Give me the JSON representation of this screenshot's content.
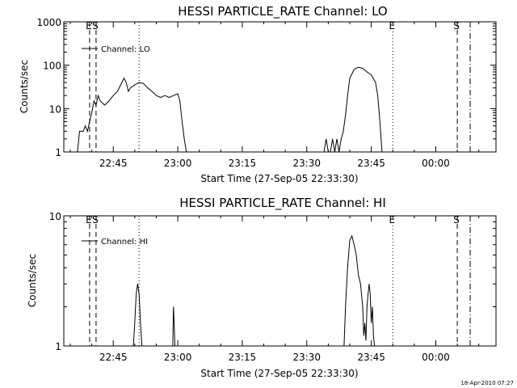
{
  "footer_timestamp": "18-Apr-2010 07:27",
  "chart_data": [
    {
      "type": "line",
      "title": "HESSI PARTICLE_RATE Channel: LO",
      "xlabel": "Start Time (27-Sep-05 22:33:30)",
      "ylabel": "Counts/sec",
      "y_scale": "log",
      "xlim": [
        "22:33:30",
        "00:14:00"
      ],
      "ylim": [
        1,
        1000
      ],
      "x_tick_labels": [
        "22:45",
        "23:00",
        "23:15",
        "23:30",
        "23:45",
        "00:00"
      ],
      "y_tick_labels": [
        "1",
        "10",
        "100",
        "1000"
      ],
      "legend": {
        "label": "Channel: LO",
        "placement": "top-left"
      },
      "markers": [
        {
          "label": "E",
          "time": "22:39:30",
          "style": "dashed"
        },
        {
          "label": "S",
          "time": "22:41:00",
          "style": "dashed"
        },
        {
          "label": "",
          "time": "22:51:00",
          "style": "dotted"
        },
        {
          "label": "E",
          "time": "23:50:00",
          "style": "dotted"
        },
        {
          "label": "S",
          "time": "00:05:00",
          "style": "dashed"
        },
        {
          "label": "",
          "time": "00:08:00",
          "style": "dashdot"
        }
      ],
      "series": [
        {
          "segments": [
            [
              [
                "22:36:40",
                1
              ],
              [
                "22:37:10",
                3
              ],
              [
                "22:38:00",
                3
              ],
              [
                "22:38:30",
                4
              ],
              [
                "22:39:00",
                3
              ],
              [
                "22:39:30",
                5
              ],
              [
                "22:40:00",
                8
              ],
              [
                "22:40:30",
                15
              ],
              [
                "22:41:00",
                12
              ],
              [
                "22:41:30",
                20
              ],
              [
                "22:42:00",
                15
              ],
              [
                "22:43:00",
                12
              ],
              [
                "22:44:00",
                15
              ],
              [
                "22:45:00",
                20
              ],
              [
                "22:46:00",
                25
              ],
              [
                "22:47:00",
                40
              ],
              [
                "22:47:30",
                50
              ],
              [
                "22:48:00",
                40
              ],
              [
                "22:48:30",
                25
              ],
              [
                "22:49:00",
                30
              ],
              [
                "22:50:00",
                35
              ],
              [
                "22:51:00",
                40
              ],
              [
                "22:52:00",
                38
              ],
              [
                "22:53:00",
                30
              ],
              [
                "22:54:00",
                25
              ],
              [
                "22:55:00",
                20
              ],
              [
                "22:56:00",
                18
              ],
              [
                "22:57:00",
                20
              ],
              [
                "22:58:00",
                18
              ],
              [
                "22:59:00",
                20
              ],
              [
                "23:00:00",
                22
              ],
              [
                "23:00:30",
                15
              ],
              [
                "23:01:00",
                5
              ],
              [
                "23:01:30",
                2
              ],
              [
                "23:02:00",
                1
              ]
            ],
            [
              [
                "23:34:00",
                1
              ],
              [
                "23:34:30",
                2
              ],
              [
                "23:35:00",
                1
              ],
              [
                "23:35:30",
                1
              ],
              [
                "23:36:00",
                2
              ],
              [
                "23:36:30",
                1
              ],
              [
                "23:37:00",
                2
              ],
              [
                "23:37:30",
                1
              ],
              [
                "23:38:00",
                2
              ],
              [
                "23:38:30",
                3
              ],
              [
                "23:39:00",
                7
              ],
              [
                "23:39:30",
                20
              ],
              [
                "23:40:00",
                50
              ],
              [
                "23:41:00",
                80
              ],
              [
                "23:42:00",
                90
              ],
              [
                "23:43:00",
                85
              ],
              [
                "23:44:00",
                70
              ],
              [
                "23:45:00",
                60
              ],
              [
                "23:46:00",
                40
              ],
              [
                "23:46:30",
                20
              ],
              [
                "23:47:00",
                5
              ],
              [
                "23:47:30",
                1
              ]
            ]
          ]
        }
      ]
    },
    {
      "type": "line",
      "title": "HESSI PARTICLE_RATE Channel: HI",
      "xlabel": "Start Time (27-Sep-05 22:33:30)",
      "ylabel": "Counts/sec",
      "y_scale": "log",
      "xlim": [
        "22:33:30",
        "00:14:00"
      ],
      "ylim": [
        1,
        10
      ],
      "x_tick_labels": [
        "22:45",
        "23:00",
        "23:15",
        "23:30",
        "23:45",
        "00:00"
      ],
      "y_tick_labels": [
        "1",
        "10"
      ],
      "legend": {
        "label": "Channel: HI",
        "placement": "top-left"
      },
      "markers": [
        {
          "label": "E",
          "time": "22:39:30",
          "style": "dashed"
        },
        {
          "label": "S",
          "time": "22:41:00",
          "style": "dashed"
        },
        {
          "label": "",
          "time": "22:51:00",
          "style": "dotted"
        },
        {
          "label": "E",
          "time": "23:50:00",
          "style": "dotted"
        },
        {
          "label": "S",
          "time": "00:05:00",
          "style": "dashed"
        },
        {
          "label": "",
          "time": "00:08:00",
          "style": "dashdot"
        }
      ],
      "series": [
        {
          "segments": [
            [
              [
                "22:49:40",
                1
              ],
              [
                "22:50:00",
                1.5
              ],
              [
                "22:50:20",
                2.5
              ],
              [
                "22:50:40",
                3.0
              ],
              [
                "22:51:00",
                2.5
              ],
              [
                "22:51:20",
                1.5
              ],
              [
                "22:51:40",
                1
              ]
            ],
            [
              [
                "22:58:50",
                1
              ],
              [
                "22:59:00",
                2.0
              ],
              [
                "22:59:10",
                1.5
              ],
              [
                "22:59:20",
                1
              ]
            ],
            [
              [
                "23:38:40",
                1
              ],
              [
                "23:39:00",
                2.0
              ],
              [
                "23:39:30",
                4.0
              ],
              [
                "23:40:00",
                6.5
              ],
              [
                "23:40:30",
                7.0
              ],
              [
                "23:41:00",
                6.0
              ],
              [
                "23:41:30",
                5.0
              ],
              [
                "23:42:00",
                3.5
              ],
              [
                "23:42:30",
                3.0
              ],
              [
                "23:43:00",
                2.0
              ],
              [
                "23:43:15",
                1.2
              ],
              [
                "23:43:30",
                1.5
              ],
              [
                "23:43:45",
                1.1
              ],
              [
                "23:44:00",
                2.0
              ],
              [
                "23:44:15",
                2.5
              ],
              [
                "23:44:30",
                3.0
              ],
              [
                "23:44:45",
                2.5
              ],
              [
                "23:45:00",
                1.5
              ],
              [
                "23:45:15",
                2.0
              ],
              [
                "23:45:30",
                1.2
              ],
              [
                "23:45:45",
                1
              ]
            ]
          ]
        }
      ]
    }
  ]
}
